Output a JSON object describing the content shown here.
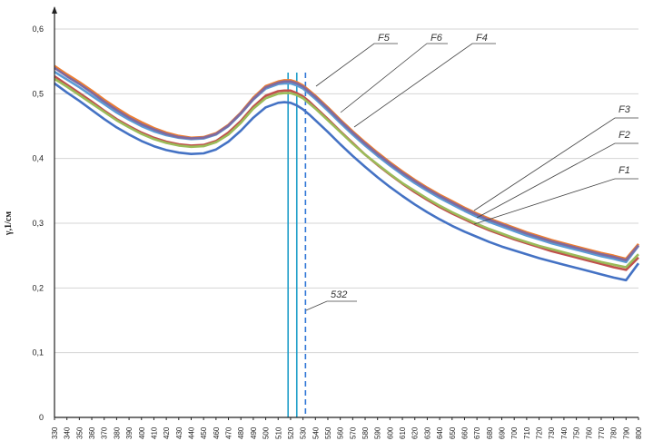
{
  "chart_data": {
    "type": "line",
    "title": "",
    "xlabel": "",
    "ylabel": "γ,1/см",
    "xlim": [
      330,
      800
    ],
    "ylim": [
      0,
      0.6
    ],
    "x_ticks": [
      330,
      340,
      350,
      360,
      370,
      380,
      390,
      400,
      410,
      420,
      430,
      440,
      450,
      460,
      470,
      480,
      490,
      500,
      510,
      520,
      530,
      540,
      550,
      560,
      570,
      580,
      590,
      600,
      610,
      620,
      630,
      640,
      650,
      660,
      670,
      680,
      690,
      700,
      710,
      720,
      730,
      740,
      750,
      760,
      770,
      780,
      790,
      800
    ],
    "y_ticks": [
      0,
      0.1,
      0.2,
      0.3,
      0.4,
      0.5,
      0.6
    ],
    "y_tick_labels": [
      "0",
      "0,1",
      "0,2",
      "0,3",
      "0,4",
      "0,5",
      "0,6"
    ],
    "grid": true,
    "x": [
      330,
      340,
      350,
      360,
      370,
      380,
      390,
      400,
      410,
      420,
      430,
      440,
      450,
      460,
      470,
      480,
      490,
      500,
      510,
      515,
      520,
      525,
      530,
      535,
      540,
      550,
      560,
      570,
      580,
      590,
      600,
      610,
      620,
      630,
      640,
      650,
      660,
      670,
      680,
      690,
      700,
      710,
      720,
      730,
      740,
      750,
      760,
      770,
      780,
      790,
      800
    ],
    "series": [
      {
        "name": "F1",
        "color": "#4472c4",
        "values": [
          0.516,
          0.502,
          0.489,
          0.475,
          0.461,
          0.448,
          0.437,
          0.427,
          0.419,
          0.413,
          0.409,
          0.407,
          0.408,
          0.414,
          0.426,
          0.443,
          0.463,
          0.479,
          0.486,
          0.487,
          0.486,
          0.482,
          0.476,
          0.468,
          0.459,
          0.441,
          0.422,
          0.404,
          0.387,
          0.371,
          0.356,
          0.342,
          0.329,
          0.317,
          0.306,
          0.296,
          0.287,
          0.279,
          0.271,
          0.264,
          0.258,
          0.252,
          0.246,
          0.241,
          0.236,
          0.231,
          0.226,
          0.221,
          0.216,
          0.212,
          0.238
        ]
      },
      {
        "name": "F2",
        "color": "#c0504d",
        "values": [
          0.527,
          0.514,
          0.501,
          0.488,
          0.474,
          0.461,
          0.45,
          0.44,
          0.432,
          0.426,
          0.422,
          0.42,
          0.421,
          0.427,
          0.44,
          0.458,
          0.48,
          0.497,
          0.504,
          0.505,
          0.505,
          0.501,
          0.496,
          0.488,
          0.479,
          0.461,
          0.442,
          0.424,
          0.406,
          0.39,
          0.375,
          0.361,
          0.348,
          0.336,
          0.325,
          0.315,
          0.306,
          0.297,
          0.289,
          0.282,
          0.275,
          0.269,
          0.263,
          0.257,
          0.252,
          0.247,
          0.242,
          0.237,
          0.232,
          0.228,
          0.247
        ]
      },
      {
        "name": "F3",
        "color": "#9bbb59",
        "values": [
          0.523,
          0.511,
          0.498,
          0.485,
          0.472,
          0.459,
          0.448,
          0.438,
          0.43,
          0.424,
          0.42,
          0.418,
          0.419,
          0.425,
          0.437,
          0.455,
          0.477,
          0.493,
          0.5,
          0.501,
          0.501,
          0.498,
          0.493,
          0.485,
          0.477,
          0.459,
          0.441,
          0.423,
          0.406,
          0.391,
          0.376,
          0.362,
          0.35,
          0.338,
          0.327,
          0.317,
          0.308,
          0.299,
          0.291,
          0.284,
          0.277,
          0.271,
          0.265,
          0.26,
          0.255,
          0.25,
          0.245,
          0.24,
          0.236,
          0.232,
          0.252
        ]
      },
      {
        "name": "F4",
        "color": "#5b9bd5",
        "values": [
          0.534,
          0.522,
          0.51,
          0.497,
          0.484,
          0.471,
          0.46,
          0.45,
          0.442,
          0.436,
          0.432,
          0.43,
          0.431,
          0.437,
          0.45,
          0.469,
          0.491,
          0.508,
          0.515,
          0.516,
          0.516,
          0.513,
          0.508,
          0.5,
          0.492,
          0.474,
          0.455,
          0.437,
          0.42,
          0.404,
          0.389,
          0.375,
          0.362,
          0.35,
          0.339,
          0.329,
          0.319,
          0.31,
          0.302,
          0.295,
          0.288,
          0.281,
          0.275,
          0.269,
          0.264,
          0.259,
          0.254,
          0.249,
          0.245,
          0.24,
          0.265
        ]
      },
      {
        "name": "F5",
        "color": "#ed7d31",
        "values": [
          0.543,
          0.53,
          0.518,
          0.505,
          0.491,
          0.478,
          0.466,
          0.456,
          0.447,
          0.44,
          0.435,
          0.432,
          0.433,
          0.439,
          0.452,
          0.471,
          0.494,
          0.512,
          0.519,
          0.521,
          0.521,
          0.518,
          0.513,
          0.505,
          0.497,
          0.479,
          0.46,
          0.442,
          0.425,
          0.409,
          0.394,
          0.38,
          0.367,
          0.355,
          0.344,
          0.334,
          0.324,
          0.315,
          0.307,
          0.3,
          0.293,
          0.286,
          0.28,
          0.274,
          0.269,
          0.264,
          0.259,
          0.254,
          0.25,
          0.245,
          0.268
        ]
      },
      {
        "name": "F6",
        "color": "#7f6a9f",
        "values": [
          0.54,
          0.527,
          0.515,
          0.502,
          0.488,
          0.475,
          0.463,
          0.453,
          0.445,
          0.438,
          0.433,
          0.431,
          0.432,
          0.438,
          0.451,
          0.47,
          0.492,
          0.51,
          0.517,
          0.519,
          0.519,
          0.516,
          0.511,
          0.503,
          0.495,
          0.477,
          0.458,
          0.44,
          0.423,
          0.407,
          0.392,
          0.378,
          0.365,
          0.353,
          0.342,
          0.332,
          0.322,
          0.313,
          0.305,
          0.298,
          0.291,
          0.284,
          0.278,
          0.272,
          0.267,
          0.262,
          0.257,
          0.252,
          0.248,
          0.243,
          0.266
        ]
      }
    ],
    "vertical_lines": [
      {
        "x": 518,
        "color": "#1f9ec9",
        "style": "solid"
      },
      {
        "x": 525,
        "color": "#1f9ec9",
        "style": "solid"
      },
      {
        "x": 532,
        "color": "#2e75d6",
        "style": "dashed"
      }
    ],
    "annotations": [
      {
        "text": "F5",
        "target": "F5"
      },
      {
        "text": "F6",
        "target": "F6"
      },
      {
        "text": "F4",
        "target": "F4"
      },
      {
        "text": "F3",
        "target": "F3"
      },
      {
        "text": "F2",
        "target": "F2"
      },
      {
        "text": "F1",
        "target": "F1"
      },
      {
        "text": "532",
        "target": "532"
      }
    ]
  }
}
